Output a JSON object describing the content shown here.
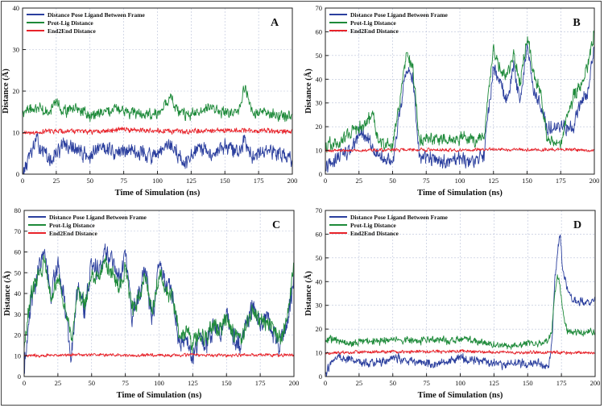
{
  "chart_data": [
    {
      "type": "line",
      "panel_label": "A",
      "xlabel": "Time of Simulation (ns)",
      "ylabel": "Distance (Å)",
      "xlim": [
        0,
        200
      ],
      "ylim": [
        0,
        40
      ],
      "xticks": [
        0,
        25,
        50,
        75,
        100,
        125,
        150,
        175,
        200
      ],
      "yticks": [
        0,
        10,
        20,
        30,
        40
      ],
      "grid": true,
      "legend_position": "top-left",
      "series": [
        {
          "name": "Distance Pose Ligand Between Frame",
          "color": "#2b3f9e",
          "x": [
            0,
            5,
            10,
            15,
            20,
            25,
            30,
            40,
            50,
            60,
            70,
            80,
            90,
            100,
            105,
            110,
            115,
            120,
            130,
            140,
            150,
            160,
            165,
            170,
            180,
            190,
            200
          ],
          "y": [
            0,
            4,
            8,
            6,
            3,
            5,
            7,
            6,
            4,
            7,
            5,
            6,
            5,
            4,
            6,
            7,
            5,
            2,
            6,
            5,
            7,
            5,
            8,
            5,
            6,
            5,
            4
          ]
        },
        {
          "name": "Prot-Lig Distance",
          "color": "#1e8a3a",
          "x": [
            0,
            10,
            20,
            25,
            30,
            40,
            50,
            60,
            70,
            80,
            90,
            100,
            105,
            110,
            115,
            120,
            130,
            140,
            150,
            160,
            165,
            170,
            180,
            190,
            200
          ],
          "y": [
            15,
            16,
            15,
            18,
            15,
            16,
            14,
            15,
            16,
            15,
            14,
            15,
            16,
            19,
            15,
            14,
            15,
            16,
            15,
            15,
            21,
            15,
            15,
            14,
            14
          ]
        },
        {
          "name": "End2End Distance",
          "color": "#e8232a",
          "x": [
            0,
            25,
            50,
            75,
            100,
            125,
            150,
            175,
            200
          ],
          "y": [
            10,
            10.5,
            10.2,
            10.8,
            10.4,
            10.3,
            10.5,
            10.4,
            10.2
          ]
        }
      ]
    },
    {
      "type": "line",
      "panel_label": "B",
      "xlabel": "Time of Simulation (ns)",
      "ylabel": "Distance (Å)",
      "xlim": [
        0,
        200
      ],
      "ylim": [
        0,
        70
      ],
      "xticks": [
        0,
        25,
        50,
        75,
        100,
        125,
        150,
        175,
        200
      ],
      "yticks": [
        0,
        10,
        20,
        30,
        40,
        50,
        60,
        70
      ],
      "grid": true,
      "legend_position": "top-left",
      "series": [
        {
          "name": "Distance Pose Ligand Between Frame",
          "color": "#2b3f9e",
          "x": [
            0,
            5,
            10,
            20,
            25,
            30,
            40,
            50,
            55,
            60,
            65,
            70,
            80,
            90,
            100,
            110,
            118,
            122,
            125,
            130,
            135,
            140,
            145,
            150,
            155,
            160,
            165,
            170,
            175,
            180,
            185,
            190,
            195,
            200
          ],
          "y": [
            2,
            5,
            8,
            10,
            18,
            15,
            8,
            5,
            25,
            45,
            40,
            8,
            6,
            5,
            6,
            5,
            8,
            30,
            45,
            38,
            32,
            45,
            30,
            55,
            35,
            28,
            20,
            20,
            20,
            20,
            20,
            30,
            35,
            55
          ]
        },
        {
          "name": "Prot-Lig Distance",
          "color": "#1e8a3a",
          "x": [
            0,
            10,
            20,
            25,
            30,
            35,
            40,
            50,
            55,
            60,
            65,
            70,
            80,
            90,
            100,
            110,
            118,
            122,
            125,
            130,
            135,
            140,
            145,
            150,
            155,
            160,
            165,
            170,
            175,
            180,
            185,
            190,
            195,
            200
          ],
          "y": [
            12,
            13,
            18,
            20,
            22,
            25,
            13,
            12,
            30,
            50,
            45,
            14,
            15,
            14,
            15,
            14,
            16,
            38,
            52,
            45,
            40,
            50,
            38,
            58,
            42,
            35,
            15,
            14,
            14,
            25,
            33,
            38,
            45,
            60
          ]
        },
        {
          "name": "End2End Distance",
          "color": "#e8232a",
          "x": [
            0,
            25,
            50,
            75,
            100,
            125,
            150,
            175,
            200
          ],
          "y": [
            10,
            10,
            10.2,
            10.3,
            10.1,
            10.4,
            10.2,
            10.3,
            10
          ]
        }
      ]
    },
    {
      "type": "line",
      "panel_label": "C",
      "xlabel": "Time of Simulation (ns)",
      "ylabel": "Distance (Å)",
      "xlim": [
        0,
        200
      ],
      "ylim": [
        0,
        80
      ],
      "xticks": [
        0,
        25,
        50,
        75,
        100,
        125,
        150,
        175,
        200
      ],
      "yticks": [
        0,
        10,
        20,
        30,
        40,
        50,
        60,
        70,
        80
      ],
      "grid": true,
      "legend_position": "top-left",
      "series": [
        {
          "name": "Distance Pose Ligand Between Frame",
          "color": "#2b3f9e",
          "x": [
            0,
            5,
            10,
            15,
            20,
            25,
            30,
            35,
            40,
            45,
            50,
            55,
            60,
            65,
            70,
            75,
            80,
            85,
            90,
            95,
            100,
            105,
            110,
            115,
            120,
            125,
            130,
            135,
            140,
            145,
            150,
            155,
            160,
            165,
            170,
            175,
            180,
            185,
            190,
            195,
            200
          ],
          "y": [
            5,
            35,
            50,
            60,
            40,
            55,
            35,
            10,
            45,
            30,
            55,
            50,
            60,
            55,
            45,
            60,
            30,
            40,
            50,
            28,
            55,
            45,
            40,
            15,
            20,
            10,
            20,
            15,
            25,
            20,
            30,
            20,
            15,
            25,
            35,
            25,
            30,
            20,
            15,
            25,
            50
          ]
        },
        {
          "name": "Prot-Lig Distance",
          "color": "#1e8a3a",
          "x": [
            0,
            5,
            10,
            15,
            20,
            25,
            30,
            35,
            40,
            45,
            50,
            55,
            60,
            65,
            70,
            75,
            80,
            85,
            90,
            95,
            100,
            105,
            110,
            115,
            120,
            125,
            130,
            135,
            140,
            145,
            150,
            155,
            160,
            165,
            170,
            175,
            180,
            185,
            190,
            195,
            200
          ],
          "y": [
            15,
            40,
            48,
            55,
            38,
            50,
            32,
            18,
            42,
            35,
            50,
            48,
            55,
            50,
            42,
            52,
            32,
            38,
            48,
            30,
            50,
            42,
            38,
            20,
            22,
            15,
            22,
            18,
            25,
            22,
            28,
            22,
            18,
            25,
            32,
            25,
            28,
            22,
            18,
            28,
            55
          ]
        },
        {
          "name": "End2End Distance",
          "color": "#e8232a",
          "x": [
            0,
            25,
            50,
            75,
            100,
            125,
            150,
            175,
            200
          ],
          "y": [
            10,
            10.3,
            10.5,
            10.2,
            10.4,
            10.3,
            10.2,
            10.4,
            10.3
          ]
        }
      ]
    },
    {
      "type": "line",
      "panel_label": "D",
      "xlabel": "Time of Simulation (ns)",
      "ylabel": "Distance (Å)",
      "xlim": [
        0,
        200
      ],
      "ylim": [
        0,
        70
      ],
      "xticks": [
        0,
        25,
        50,
        75,
        100,
        125,
        150,
        175,
        200
      ],
      "yticks": [
        0,
        10,
        20,
        30,
        40,
        50,
        60,
        70
      ],
      "grid": true,
      "legend_position": "top-left",
      "series": [
        {
          "name": "Distance Pose Ligand Between Frame",
          "color": "#2b3f9e",
          "x": [
            0,
            5,
            10,
            20,
            30,
            40,
            50,
            60,
            70,
            80,
            90,
            100,
            110,
            120,
            130,
            140,
            150,
            160,
            165,
            168,
            170,
            172,
            174,
            176,
            178,
            180,
            185,
            190,
            195,
            200
          ],
          "y": [
            1,
            6,
            8,
            7,
            5,
            6,
            8,
            7,
            6,
            5,
            6,
            8,
            7,
            6,
            5,
            6,
            5,
            6,
            3,
            15,
            40,
            52,
            60,
            45,
            40,
            35,
            32,
            31,
            31,
            32
          ]
        },
        {
          "name": "Prot-Lig Distance",
          "color": "#1e8a3a",
          "x": [
            0,
            5,
            10,
            20,
            30,
            40,
            50,
            60,
            70,
            80,
            90,
            100,
            110,
            120,
            130,
            140,
            150,
            160,
            165,
            168,
            170,
            172,
            174,
            176,
            178,
            180,
            185,
            190,
            195,
            200
          ],
          "y": [
            15,
            16,
            15,
            14,
            15,
            15,
            16,
            15,
            15,
            16,
            15,
            16,
            15,
            14,
            13,
            13,
            14,
            14,
            15,
            20,
            35,
            42,
            38,
            28,
            22,
            19,
            18,
            18,
            19,
            19
          ]
        },
        {
          "name": "End2End Distance",
          "color": "#e8232a",
          "x": [
            0,
            25,
            50,
            75,
            100,
            125,
            150,
            175,
            200
          ],
          "y": [
            10,
            10.3,
            10.5,
            10.4,
            10.6,
            10.3,
            10.2,
            10.1,
            10
          ]
        }
      ]
    }
  ]
}
